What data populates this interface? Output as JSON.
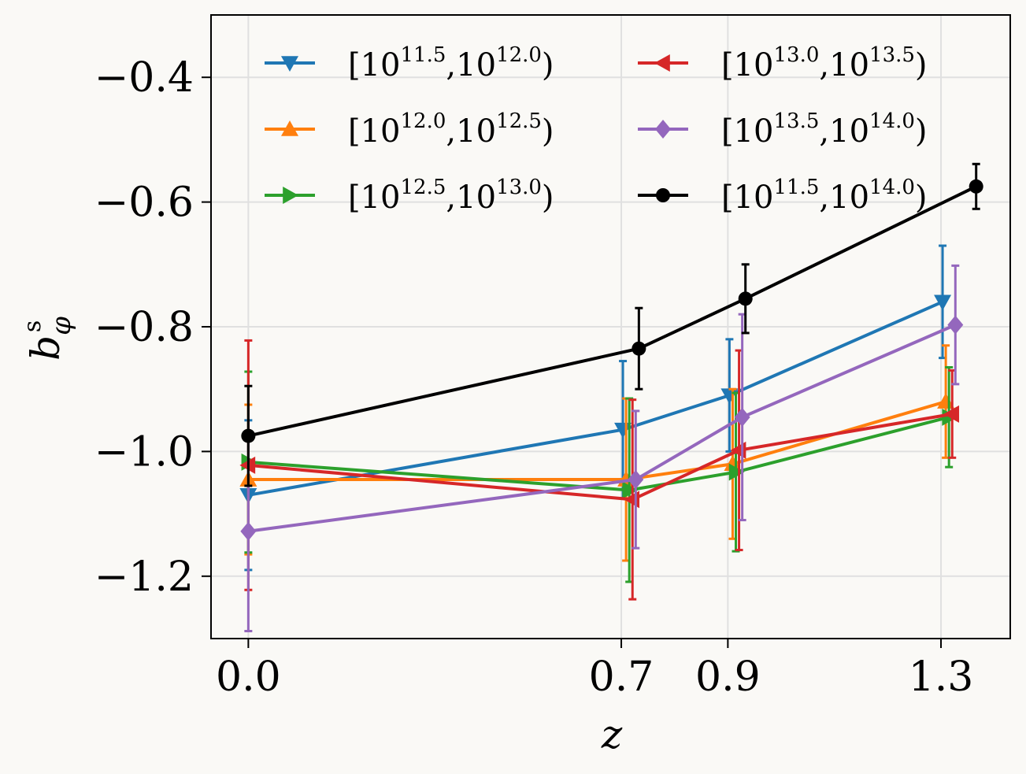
{
  "chart_data": {
    "type": "line",
    "xlabel": "z",
    "ylabel_main": "b",
    "ylabel_sub": "φ",
    "ylabel_sup": "s",
    "x_ticks": [
      0.0,
      0.7,
      0.9,
      1.3
    ],
    "x_tick_labels": [
      "0.0",
      "0.7",
      "0.9",
      "1.3"
    ],
    "y_ticks": [
      -0.4,
      -0.6,
      -0.8,
      -1.0,
      -1.2
    ],
    "y_tick_labels": [
      "−0.4",
      "−0.6",
      "−0.8",
      "−1.0",
      "−1.2"
    ],
    "xlim": [
      -0.07,
      1.43
    ],
    "ylim": [
      -1.3,
      -0.3
    ],
    "grid": true,
    "legend_position": "top",
    "series": [
      {
        "name": "[10^11.5,10^12.0)",
        "b1": "11.5",
        "b2": "12.0",
        "color": "#1f77b4",
        "marker": "triangle-down",
        "x": [
          0.0,
          0.703,
          0.903,
          1.303
        ],
        "y": [
          -1.07,
          -0.965,
          -0.91,
          -0.76
        ],
        "err": [
          0.12,
          0.11,
          0.09,
          0.09
        ]
      },
      {
        "name": "[10^12.0,10^12.5)",
        "b1": "12.0",
        "b2": "12.5",
        "color": "#ff7f0e",
        "marker": "triangle-up",
        "x": [
          0.0,
          0.709,
          0.909,
          1.309
        ],
        "y": [
          -1.045,
          -1.045,
          -1.02,
          -0.92
        ],
        "err": [
          0.12,
          0.13,
          0.12,
          0.09
        ]
      },
      {
        "name": "[10^12.5,10^13.0)",
        "b1": "12.5",
        "b2": "13.0",
        "color": "#2ca02c",
        "marker": "triangle-right",
        "x": [
          0.0,
          0.715,
          0.915,
          1.315
        ],
        "y": [
          -1.017,
          -1.062,
          -1.033,
          -0.945
        ],
        "err": [
          0.145,
          0.147,
          0.127,
          0.08
        ]
      },
      {
        "name": "[10^13.0,10^13.5)",
        "b1": "13.0",
        "b2": "13.5",
        "color": "#d62728",
        "marker": "triangle-left",
        "x": [
          0.0,
          0.721,
          0.921,
          1.321
        ],
        "y": [
          -1.022,
          -1.077,
          -0.998,
          -0.94
        ],
        "err": [
          0.2,
          0.16,
          0.16,
          0.07
        ]
      },
      {
        "name": "[10^13.5,10^14.0)",
        "b1": "13.5",
        "b2": "14.0",
        "color": "#9467bd",
        "marker": "diamond",
        "x": [
          0.0,
          0.727,
          0.927,
          1.327
        ],
        "y": [
          -1.128,
          -1.045,
          -0.945,
          -0.797
        ],
        "err": [
          0.16,
          0.11,
          0.165,
          0.095
        ]
      },
      {
        "name": "[10^11.5,10^14.0)",
        "b1": "11.5",
        "b2": "14.0",
        "color": "#000000",
        "marker": "circle",
        "x": [
          0.0,
          0.733,
          0.933,
          1.366
        ],
        "y": [
          -0.975,
          -0.835,
          -0.755,
          -0.575
        ],
        "err": [
          0.08,
          0.065,
          0.055,
          0.036
        ]
      }
    ]
  }
}
